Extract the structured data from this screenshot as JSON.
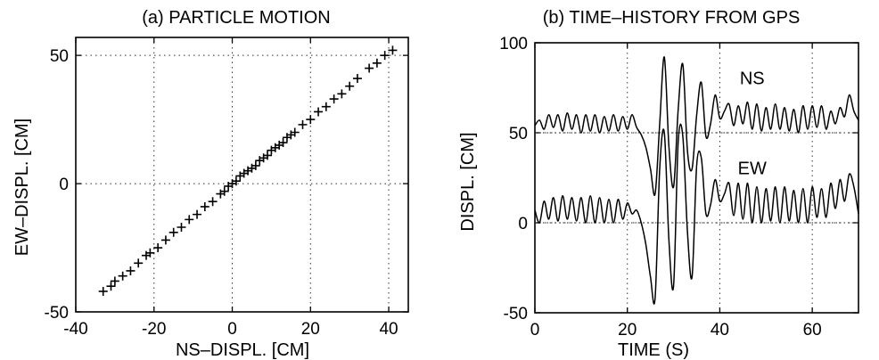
{
  "chart_data": [
    {
      "type": "scatter",
      "title": "(a) PARTICLE MOTION",
      "xlabel": "NS–DISPL. [CM]",
      "ylabel": "EW–DISPL. [CM]",
      "xlim": [
        -40,
        45
      ],
      "ylim": [
        -50,
        57
      ],
      "xticks": [
        -40,
        -20,
        0,
        20,
        40
      ],
      "yticks": [
        -50,
        0,
        50
      ],
      "grid": true,
      "marker": "plus",
      "fit_slope": 1.26,
      "points": [
        [
          -33,
          -42
        ],
        [
          -31,
          -40
        ],
        [
          -30,
          -38
        ],
        [
          -28,
          -36
        ],
        [
          -26,
          -34
        ],
        [
          -24,
          -31
        ],
        [
          -22,
          -28
        ],
        [
          -21,
          -27
        ],
        [
          -19,
          -25
        ],
        [
          -17,
          -22
        ],
        [
          -15,
          -19
        ],
        [
          -13,
          -17
        ],
        [
          -11,
          -14
        ],
        [
          -9,
          -12
        ],
        [
          -7,
          -9
        ],
        [
          -5,
          -7
        ],
        [
          -3,
          -4
        ],
        [
          -2,
          -3
        ],
        [
          -1,
          -1
        ],
        [
          0,
          0
        ],
        [
          1,
          1
        ],
        [
          2,
          3
        ],
        [
          3,
          4
        ],
        [
          4,
          5
        ],
        [
          5,
          6
        ],
        [
          6,
          7
        ],
        [
          7,
          9
        ],
        [
          8,
          10
        ],
        [
          9,
          11
        ],
        [
          10,
          13
        ],
        [
          11,
          14
        ],
        [
          12,
          15
        ],
        [
          13,
          16
        ],
        [
          14,
          18
        ],
        [
          15,
          19
        ],
        [
          16,
          20
        ],
        [
          18,
          23
        ],
        [
          20,
          25
        ],
        [
          22,
          28
        ],
        [
          24,
          30
        ],
        [
          26,
          33
        ],
        [
          28,
          35
        ],
        [
          30,
          38
        ],
        [
          32,
          41
        ],
        [
          35,
          45
        ],
        [
          37,
          47
        ],
        [
          39,
          50
        ],
        [
          41,
          52
        ]
      ]
    },
    {
      "type": "line",
      "title": "(b) TIME–HISTORY FROM GPS",
      "xlabel": "TIME (S)",
      "ylabel": "DISPL. [CM]",
      "xlim": [
        0,
        70
      ],
      "ylim": [
        -50,
        100
      ],
      "xticks": [
        0,
        20,
        40,
        60
      ],
      "yticks": [
        -50,
        0,
        50,
        100
      ],
      "grid": true,
      "reference_lines_y": [
        0,
        50
      ],
      "series": [
        {
          "name": "NS",
          "x": [
            0,
            1,
            2,
            3,
            4,
            5,
            6,
            7,
            8,
            9,
            10,
            11,
            12,
            13,
            14,
            15,
            16,
            17,
            18,
            19,
            20,
            21,
            22,
            23,
            24,
            25,
            26,
            27,
            28,
            29,
            30,
            31,
            32,
            33,
            34,
            35,
            36,
            37,
            38,
            39,
            40,
            41,
            42,
            43,
            44,
            45,
            46,
            47,
            48,
            49,
            50,
            51,
            52,
            53,
            54,
            55,
            56,
            57,
            58,
            59,
            60,
            61,
            62,
            63,
            64,
            65,
            66,
            67,
            68,
            69,
            70
          ],
          "values": [
            54,
            57,
            52,
            60,
            53,
            60,
            51,
            61,
            52,
            60,
            50,
            60,
            51,
            60,
            50,
            59,
            51,
            60,
            51,
            59,
            52,
            60,
            53,
            49,
            42,
            30,
            16,
            55,
            92,
            42,
            20,
            63,
            88,
            40,
            30,
            60,
            78,
            48,
            55,
            71,
            58,
            62,
            66,
            54,
            65,
            55,
            67,
            52,
            66,
            51,
            64,
            52,
            66,
            52,
            64,
            51,
            63,
            50,
            65,
            52,
            65,
            53,
            65,
            52,
            62,
            55,
            64,
            59,
            71,
            62,
            57
          ]
        },
        {
          "name": "EW",
          "x": [
            0,
            1,
            2,
            3,
            4,
            5,
            6,
            7,
            8,
            9,
            10,
            11,
            12,
            13,
            14,
            15,
            16,
            17,
            18,
            19,
            20,
            21,
            22,
            23,
            24,
            25,
            26,
            27,
            28,
            29,
            30,
            31,
            32,
            33,
            34,
            35,
            36,
            37,
            38,
            39,
            40,
            41,
            42,
            43,
            44,
            45,
            46,
            47,
            48,
            49,
            50,
            51,
            52,
            53,
            54,
            55,
            56,
            57,
            58,
            59,
            60,
            61,
            62,
            63,
            64,
            65,
            66,
            67,
            68,
            69,
            70
          ],
          "values": [
            7,
            0,
            12,
            2,
            14,
            1,
            15,
            2,
            14,
            1,
            14,
            0,
            15,
            0,
            14,
            0,
            13,
            0,
            13,
            2,
            11,
            5,
            7,
            0,
            -12,
            -30,
            -42,
            30,
            50,
            -10,
            -35,
            45,
            48,
            -5,
            -30,
            32,
            36,
            5,
            10,
            24,
            12,
            16,
            22,
            4,
            22,
            2,
            22,
            0,
            20,
            0,
            19,
            1,
            20,
            0,
            20,
            1,
            18,
            0,
            19,
            0,
            20,
            3,
            19,
            3,
            22,
            8,
            24,
            12,
            27,
            20,
            5
          ]
        }
      ]
    }
  ]
}
